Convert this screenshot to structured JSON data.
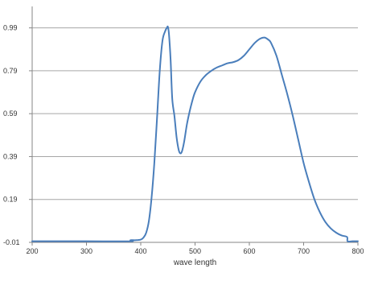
{
  "colors": {
    "series": "#4a7ebb",
    "grid": "#a6a6a6",
    "axis": "#868686",
    "text": "#333333",
    "background": "#ffffff"
  },
  "chart_data": {
    "type": "line",
    "title": "",
    "xlabel": "wave length",
    "ylabel": "",
    "xlim": [
      200,
      800
    ],
    "ylim": [
      -0.01,
      1.09
    ],
    "x_ticks": [
      200,
      300,
      400,
      500,
      600,
      700,
      800
    ],
    "y_ticks": [
      -0.01,
      0.19,
      0.39,
      0.59,
      0.79,
      0.99
    ],
    "x_tick_labels": [
      "200",
      "300",
      "400",
      "500",
      "600",
      "700",
      "800"
    ],
    "y_tick_labels": [
      "-0.01",
      "0.19",
      "0.39",
      "0.59",
      "0.79",
      "0.99"
    ],
    "grid": "horizontal",
    "legend": "none",
    "series": [
      {
        "color": "#4a7ebb",
        "x": [
          200,
          300,
          380,
          381,
          390,
          400,
          405,
          410,
          415,
          420,
          425,
          430,
          435,
          440,
          445,
          448,
          450,
          452,
          455,
          458,
          462,
          466,
          470,
          473,
          476,
          480,
          485,
          490,
          495,
          500,
          510,
          520,
          530,
          540,
          550,
          560,
          570,
          580,
          590,
          600,
          610,
          620,
          628,
          635,
          640,
          650,
          660,
          670,
          680,
          690,
          700,
          710,
          720,
          730,
          740,
          750,
          760,
          770,
          780,
          781,
          790,
          800
        ],
        "y": [
          -0.005,
          -0.005,
          -0.005,
          0.0,
          0.0,
          0.003,
          0.012,
          0.035,
          0.09,
          0.2,
          0.36,
          0.57,
          0.79,
          0.93,
          0.975,
          0.99,
          0.995,
          0.96,
          0.84,
          0.66,
          0.58,
          0.48,
          0.42,
          0.405,
          0.415,
          0.46,
          0.54,
          0.6,
          0.65,
          0.69,
          0.74,
          0.77,
          0.79,
          0.805,
          0.815,
          0.825,
          0.83,
          0.84,
          0.86,
          0.89,
          0.92,
          0.94,
          0.945,
          0.935,
          0.92,
          0.86,
          0.77,
          0.68,
          0.58,
          0.47,
          0.36,
          0.27,
          0.19,
          0.13,
          0.085,
          0.055,
          0.035,
          0.022,
          0.015,
          -0.005,
          -0.005,
          -0.005
        ]
      }
    ]
  }
}
